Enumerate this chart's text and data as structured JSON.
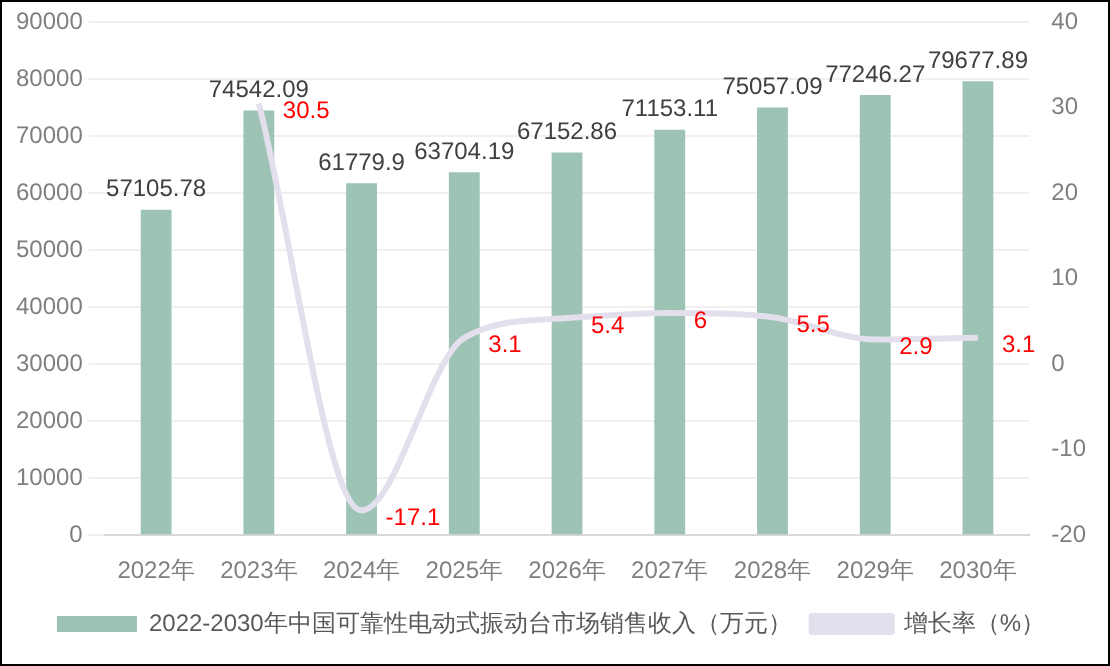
{
  "chart_data": {
    "type": "bar",
    "categories": [
      "2022年",
      "2023年",
      "2024年",
      "2025年",
      "2026年",
      "2027年",
      "2028年",
      "2029年",
      "2030年"
    ],
    "series": [
      {
        "name": "2022-2030年中国可靠性电动式振动台市场销售收入（万元）",
        "color": "#9cc3b4",
        "values": [
          57105.78,
          74542.09,
          61779.9,
          63704.19,
          67152.86,
          71153.11,
          75057.09,
          77246.27,
          79677.89
        ]
      },
      {
        "name": "增长率（%）",
        "type": "line",
        "axis": "y2",
        "color": "#e4dfec",
        "values": [
          null,
          30.5,
          -17.1,
          3.1,
          5.4,
          6,
          5.5,
          2.9,
          3.1
        ]
      }
    ],
    "ylim": [
      0,
      90000
    ],
    "yticks": [
      0,
      10000,
      20000,
      30000,
      40000,
      50000,
      60000,
      70000,
      80000,
      90000
    ],
    "y2lim": [
      -20,
      40
    ],
    "y2ticks": [
      -20,
      -10,
      0,
      10,
      20,
      30,
      40
    ],
    "grid": "y",
    "legend": "bottom",
    "data_labels": true,
    "marker": "none"
  }
}
